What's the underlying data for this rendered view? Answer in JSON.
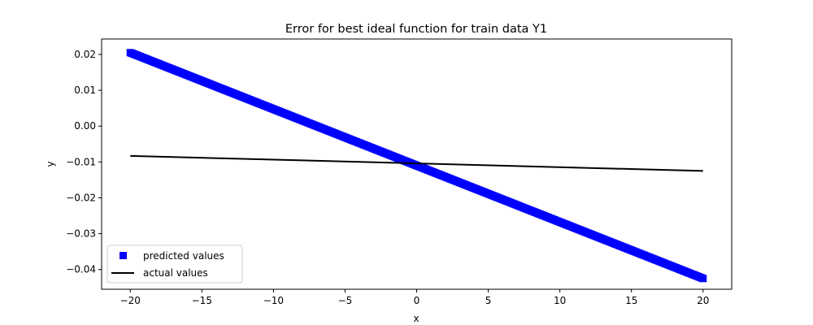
{
  "chart_data": {
    "type": "scatter",
    "title": "Error for best ideal function for train data Y1",
    "xlabel": "x",
    "ylabel": "y",
    "xlim": [
      -22,
      22
    ],
    "ylim": [
      -0.0455,
      0.0243
    ],
    "xticks": [
      -20,
      -15,
      -10,
      -5,
      0,
      5,
      10,
      15,
      20
    ],
    "xtick_labels": [
      "−20",
      "−15",
      "−10",
      "−5",
      "0",
      "5",
      "10",
      "15",
      "20"
    ],
    "yticks": [
      0.02,
      0.01,
      0.0,
      -0.01,
      -0.02,
      -0.03,
      -0.04
    ],
    "ytick_labels": [
      "0.02",
      "0.01",
      "0.00",
      "−0.01",
      "−0.02",
      "−0.03",
      "−0.04"
    ],
    "grid": false,
    "legend_position": "lower-left",
    "series": [
      {
        "name": "predicted values",
        "kind": "scatter",
        "marker": "square",
        "color": "#0000ff",
        "x_range": [
          -20,
          20
        ],
        "y_range": [
          0.0205,
          -0.0425
        ],
        "x_step": 0.1
      },
      {
        "name": "actual values",
        "kind": "line",
        "color": "#000000",
        "x": [
          -20,
          20
        ],
        "y": [
          -0.0083,
          -0.0125
        ]
      }
    ]
  }
}
